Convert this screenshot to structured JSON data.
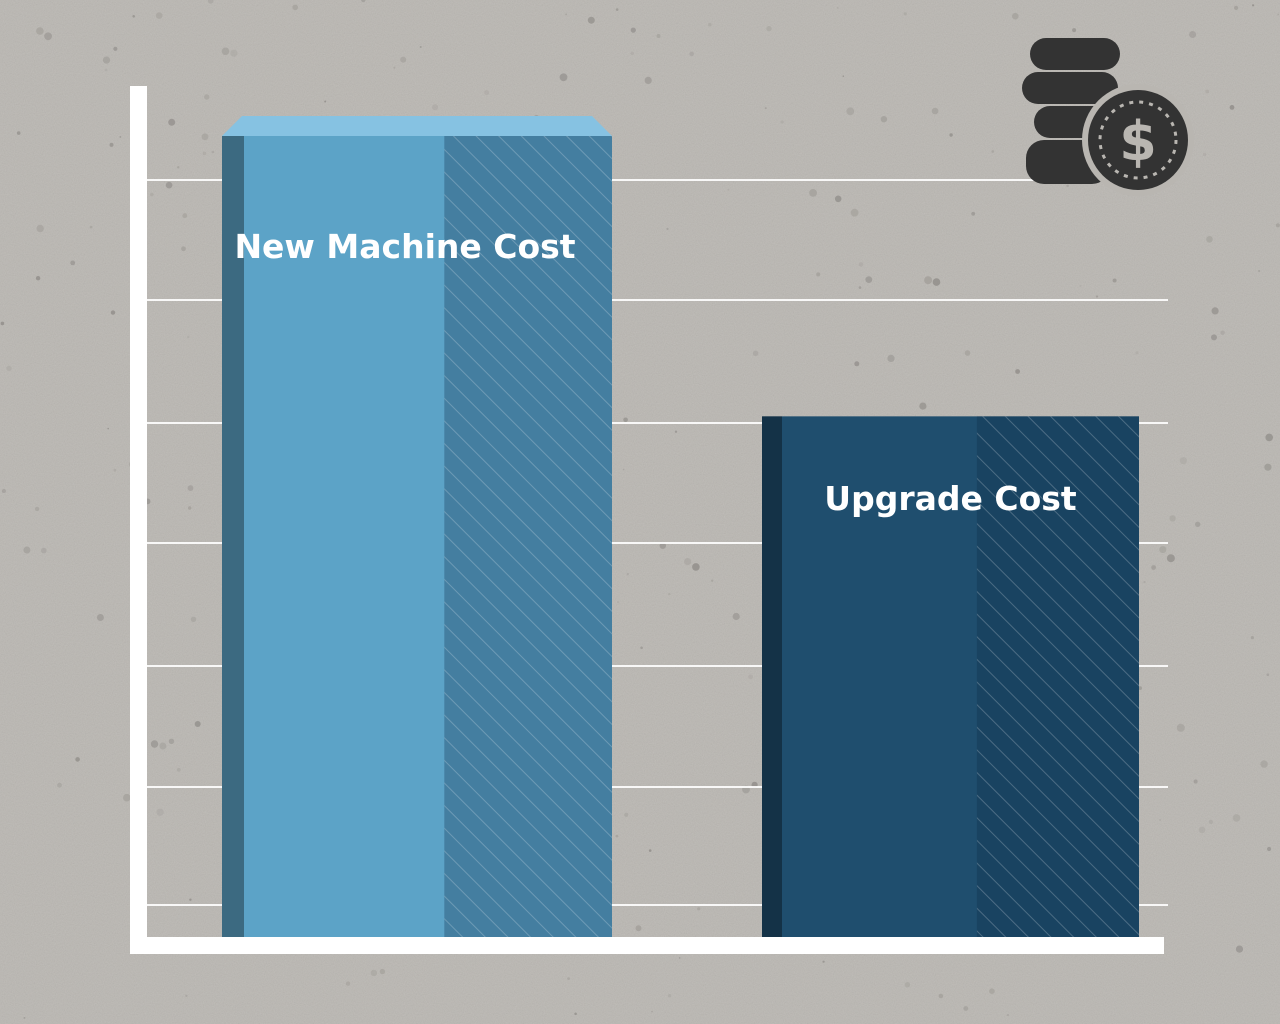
{
  "chart_data": {
    "type": "bar",
    "categories": [
      "New Machine Cost",
      "Upgrade Cost"
    ],
    "values": [
      100,
      65
    ],
    "ylim": [
      0,
      100
    ],
    "grid": true,
    "title": "",
    "xlabel": "",
    "ylabel": "",
    "colors": [
      "#5ca3c7",
      "#1f4e6e"
    ],
    "icon": "coin-stack-dollar-icon"
  }
}
